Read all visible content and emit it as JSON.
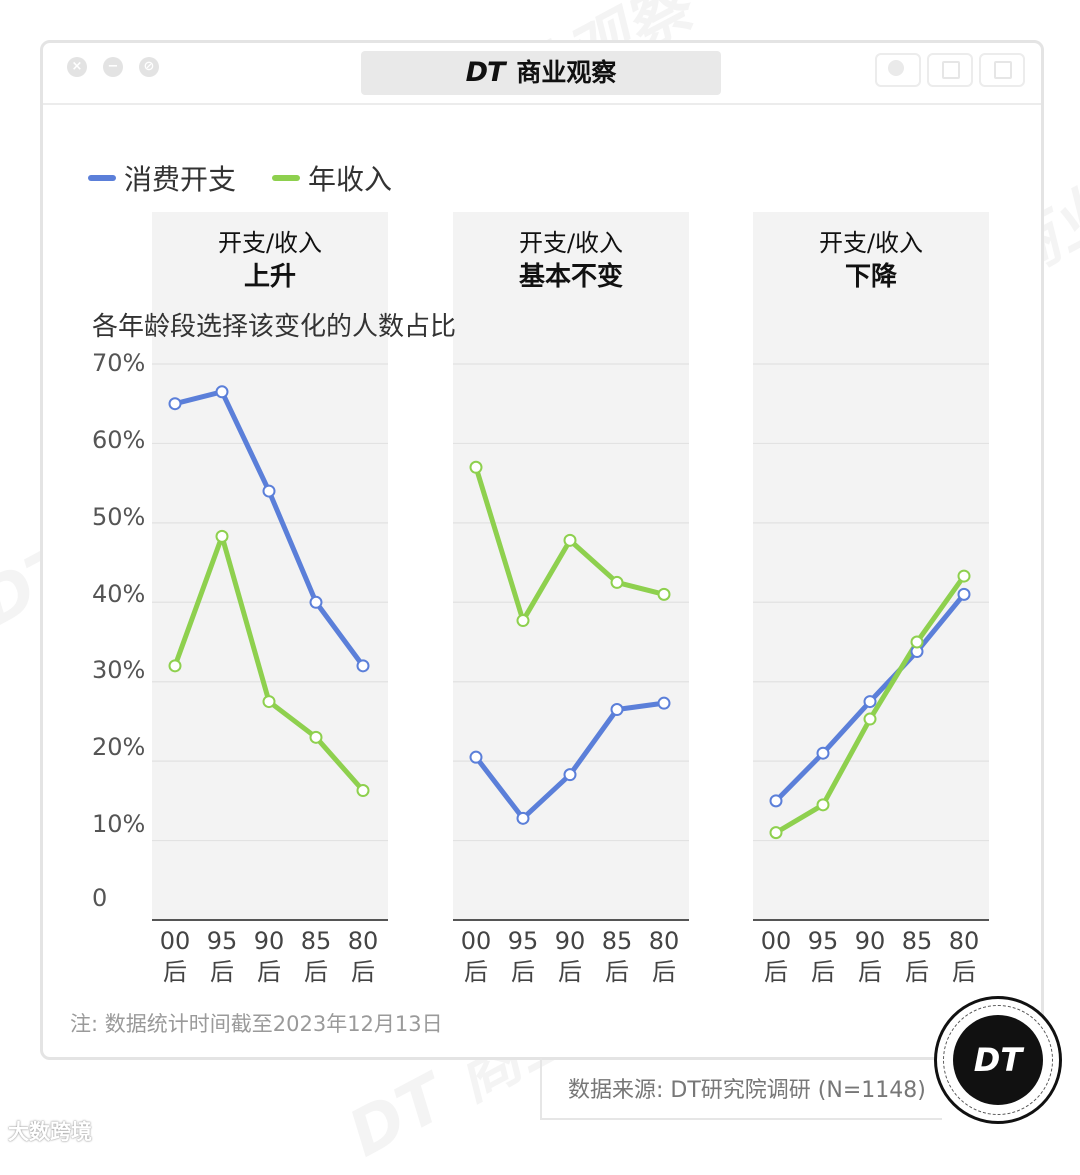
{
  "window": {
    "title_logo": "DT",
    "title": "商业观察"
  },
  "watermark": "DT 商业观察",
  "brandmark": "大数跨境",
  "legend": [
    {
      "label": "消费开支",
      "color": "#5b7fd9"
    },
    {
      "label": "年收入",
      "color": "#8ed04e"
    }
  ],
  "panels": [
    {
      "line1": "开支/收入",
      "line2": "上升"
    },
    {
      "line1": "开支/收入",
      "line2": "基本不变"
    },
    {
      "line1": "开支/收入",
      "line2": "下降"
    }
  ],
  "axis_caption": "各年龄段选择该变化的人数占比",
  "y_ticks": [
    "70%",
    "60%",
    "50%",
    "40%",
    "30%",
    "20%",
    "10%",
    "0"
  ],
  "x_tick_groups": [
    "00",
    "95",
    "90",
    "85",
    "80"
  ],
  "x_tick_suffix": "后",
  "note": "注: 数据统计时间截至2023年12月13日",
  "source": "数据来源: DT研究院调研 (N=1148)",
  "badge": "DT",
  "chart_data": {
    "type": "line",
    "ylim": [
      0,
      70
    ],
    "categories": [
      "00后",
      "95后",
      "90后",
      "85后",
      "80后"
    ],
    "facets": [
      {
        "title": "开支/收入 上升",
        "series": [
          {
            "name": "消费开支",
            "values": [
              65,
              66.5,
              54,
              40,
              32
            ]
          },
          {
            "name": "年收入",
            "values": [
              32,
              48.3,
              27.5,
              23,
              16.3
            ]
          }
        ]
      },
      {
        "title": "开支/收入 基本不变",
        "series": [
          {
            "name": "消费开支",
            "values": [
              20.5,
              12.8,
              18.3,
              26.5,
              27.3
            ]
          },
          {
            "name": "年收入",
            "values": [
              57,
              37.7,
              47.8,
              42.5,
              41
            ]
          }
        ]
      },
      {
        "title": "开支/收入 下降",
        "series": [
          {
            "name": "消费开支",
            "values": [
              15,
              21,
              27.5,
              33.8,
              41
            ]
          },
          {
            "name": "年收入",
            "values": [
              11,
              14.5,
              25.3,
              35,
              43.3
            ]
          }
        ]
      }
    ]
  }
}
